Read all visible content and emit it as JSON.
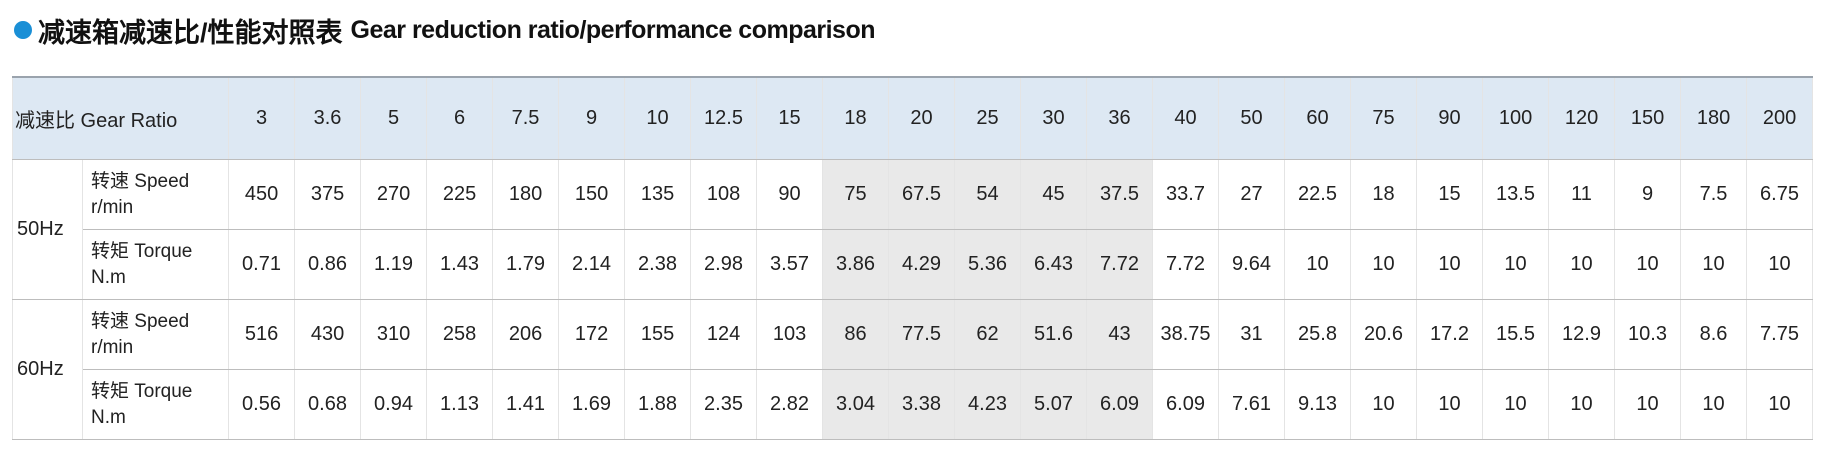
{
  "title": {
    "cn": "减速箱减速比/性能对照表",
    "en": "Gear reduction ratio/performance comparison"
  },
  "table": {
    "header_label": "减速比 Gear Ratio",
    "ratios": [
      "3",
      "3.6",
      "5",
      "6",
      "7.5",
      "9",
      "10",
      "12.5",
      "15",
      "18",
      "20",
      "25",
      "30",
      "36",
      "40",
      "50",
      "60",
      "75",
      "90",
      "100",
      "120",
      "150",
      "180",
      "200"
    ],
    "groups": [
      {
        "freq": "50Hz",
        "rows": [
          {
            "label": "转速 Speed",
            "unit": "r/min",
            "values": [
              "450",
              "375",
              "270",
              "225",
              "180",
              "150",
              "135",
              "108",
              "90",
              "75",
              "67.5",
              "54",
              "45",
              "37.5",
              "33.7",
              "27",
              "22.5",
              "18",
              "15",
              "13.5",
              "11",
              "9",
              "7.5",
              "6.75"
            ]
          },
          {
            "label": "转矩 Torque",
            "unit": "N.m",
            "values": [
              "0.71",
              "0.86",
              "1.19",
              "1.43",
              "1.79",
              "2.14",
              "2.38",
              "2.98",
              "3.57",
              "3.86",
              "4.29",
              "5.36",
              "6.43",
              "7.72",
              "7.72",
              "9.64",
              "10",
              "10",
              "10",
              "10",
              "10",
              "10",
              "10",
              "10"
            ]
          }
        ]
      },
      {
        "freq": "60Hz",
        "rows": [
          {
            "label": "转速 Speed",
            "unit": "r/min",
            "values": [
              "516",
              "430",
              "310",
              "258",
              "206",
              "172",
              "155",
              "124",
              "103",
              "86",
              "77.5",
              "62",
              "51.6",
              "43",
              "38.75",
              "31",
              "25.8",
              "20.6",
              "17.2",
              "15.5",
              "12.9",
              "10.3",
              "8.6",
              "7.75"
            ]
          },
          {
            "label": "转矩 Torque",
            "unit": "N.m",
            "values": [
              "0.56",
              "0.68",
              "0.94",
              "1.13",
              "1.41",
              "1.69",
              "1.88",
              "2.35",
              "2.82",
              "3.04",
              "3.38",
              "4.23",
              "5.07",
              "6.09",
              "6.09",
              "7.61",
              "9.13",
              "10",
              "10",
              "10",
              "10",
              "10",
              "10",
              "10"
            ]
          }
        ]
      }
    ]
  }
}
